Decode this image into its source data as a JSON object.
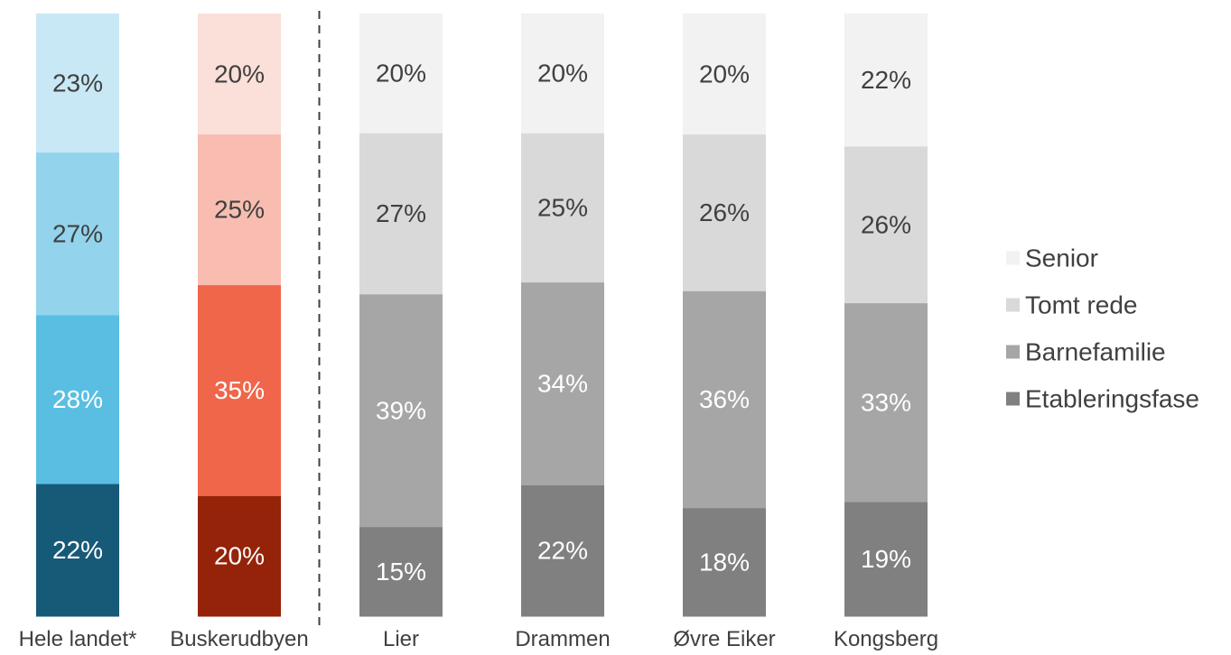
{
  "chart_data": {
    "type": "bar",
    "stacked": true,
    "normalized": true,
    "categories": [
      "Hele landet*",
      "Buskerudbyen",
      "Lier",
      "Drammen",
      "Øvre Eiker",
      "Kongsberg"
    ],
    "series": [
      {
        "name": "Etableringsfase",
        "values": [
          22,
          20,
          15,
          22,
          18,
          19
        ],
        "labels": [
          "22%",
          "20%",
          "15%",
          "22%",
          "18%",
          "19%"
        ]
      },
      {
        "name": "Barnefamilie",
        "values": [
          28,
          35,
          39,
          34,
          36,
          33
        ],
        "labels": [
          "28%",
          "35%",
          "39%",
          "34%",
          "36%",
          "33%"
        ]
      },
      {
        "name": "Tomt rede",
        "values": [
          27,
          25,
          27,
          25,
          26,
          26
        ],
        "labels": [
          "27%",
          "25%",
          "27%",
          "25%",
          "26%",
          "26%"
        ]
      },
      {
        "name": "Senior",
        "values": [
          23,
          20,
          20,
          20,
          20,
          22
        ],
        "labels": [
          "23%",
          "20%",
          "20%",
          "20%",
          "20%",
          "22%"
        ]
      }
    ],
    "colors": [
      [
        "#175a78",
        "#5abee3",
        "#93d3ec",
        "#c9e8f5"
      ],
      [
        "#952309",
        "#f0664a",
        "#f8bdb0",
        "#fbdfd9"
      ],
      [
        "#808080",
        "#a6a6a6",
        "#d9d9d9",
        "#f2f2f2"
      ],
      [
        "#808080",
        "#a6a6a6",
        "#d9d9d9",
        "#f2f2f2"
      ],
      [
        "#808080",
        "#a6a6a6",
        "#d9d9d9",
        "#f2f2f2"
      ],
      [
        "#808080",
        "#a6a6a6",
        "#d9d9d9",
        "#f2f2f2"
      ]
    ],
    "label_colors": [
      [
        "#ffffff",
        "#ffffff",
        "#404040",
        "#404040"
      ],
      [
        "#ffffff",
        "#ffffff",
        "#404040",
        "#404040"
      ],
      [
        "#ffffff",
        "#ffffff",
        "#404040",
        "#404040"
      ],
      [
        "#ffffff",
        "#ffffff",
        "#404040",
        "#404040"
      ],
      [
        "#ffffff",
        "#ffffff",
        "#404040",
        "#404040"
      ],
      [
        "#ffffff",
        "#ffffff",
        "#404040",
        "#404040"
      ]
    ],
    "legend": {
      "position": "right",
      "entries": [
        "Senior",
        "Tomt rede",
        "Barnefamilie",
        "Etableringsfase"
      ],
      "colors": [
        "#f2f2f2",
        "#d9d9d9",
        "#a6a6a6",
        "#808080"
      ]
    },
    "separator_after_category": 1,
    "grid": false,
    "ylim": [
      0,
      100
    ],
    "title": "",
    "xlabel": "",
    "ylabel": ""
  }
}
